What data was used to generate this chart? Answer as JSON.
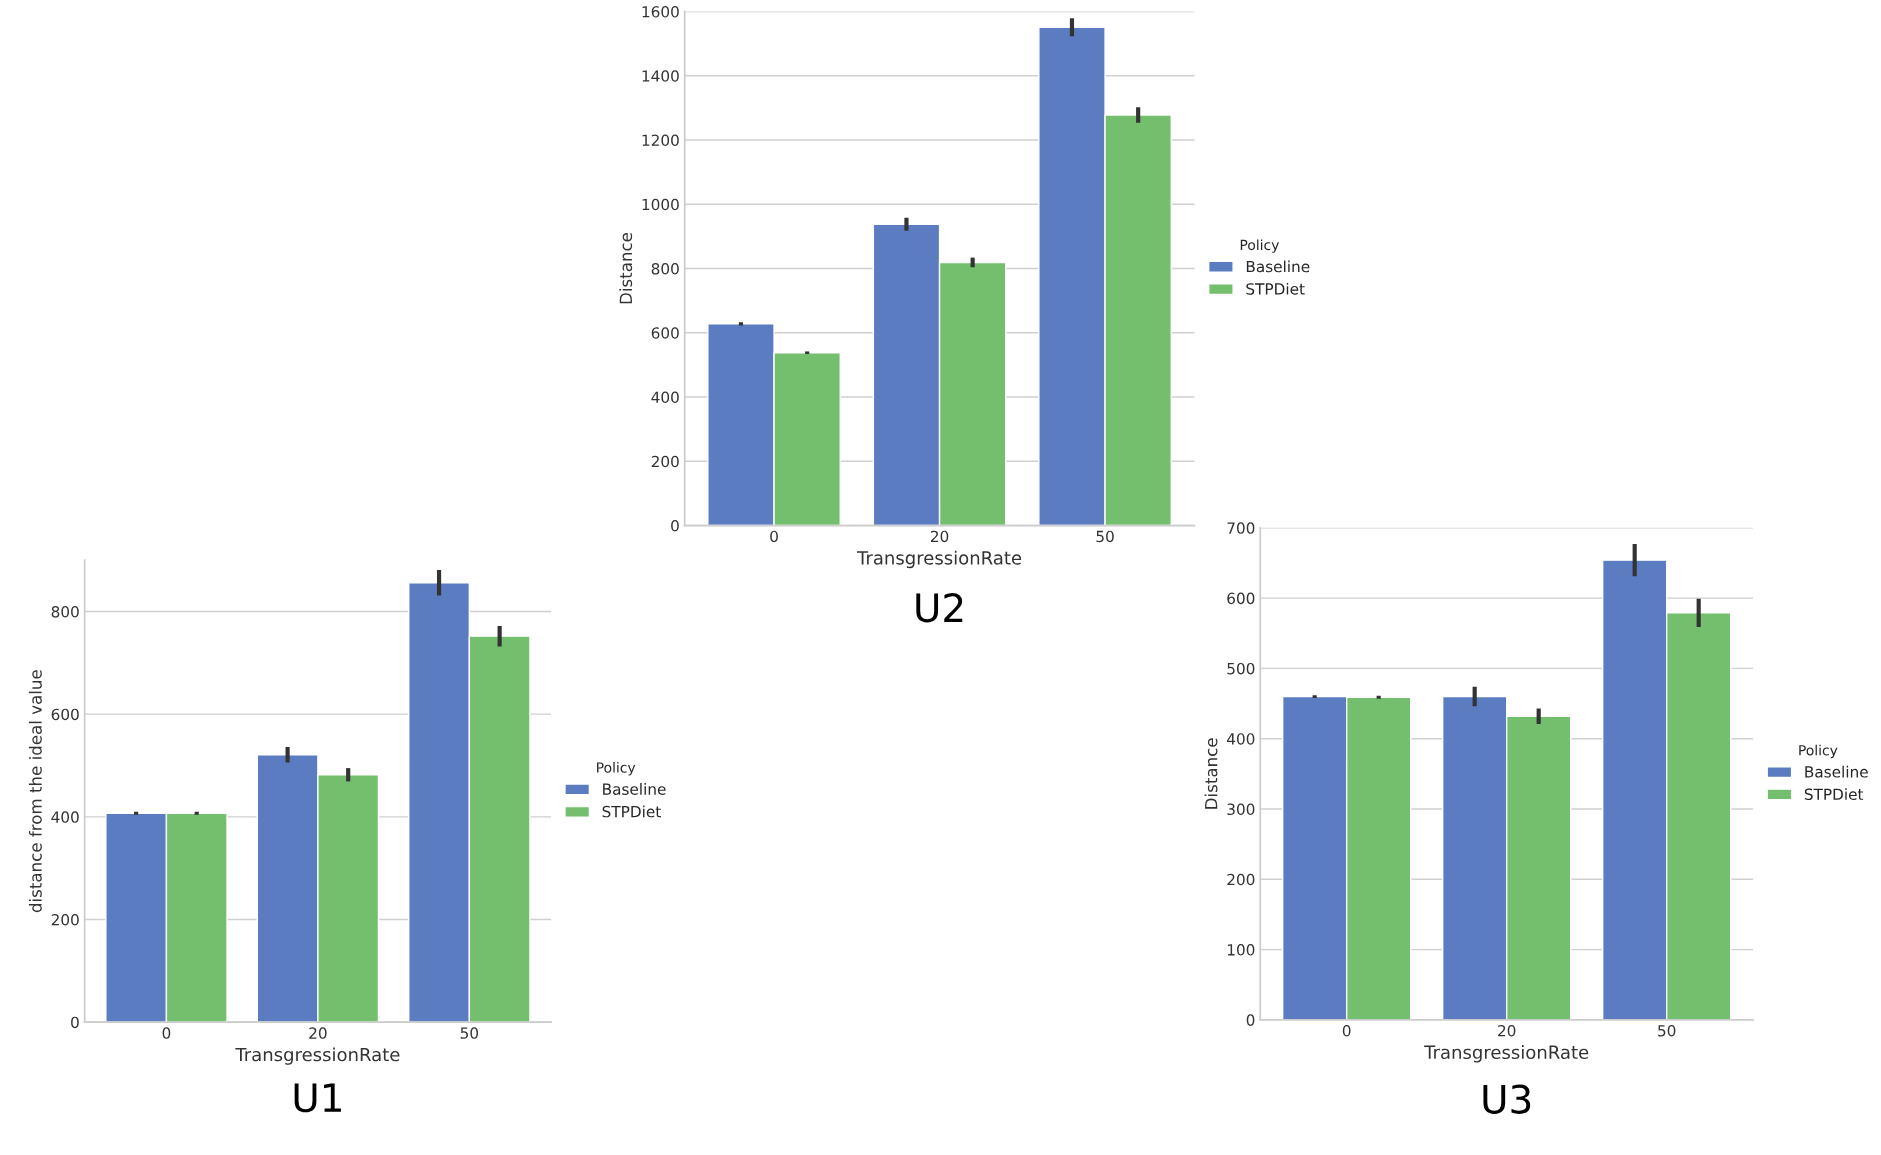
{
  "chart_data": [
    {
      "type": "bar",
      "title": "U1",
      "xlabel": "TransgressionRate",
      "ylabel": "distance from the ideal value",
      "legend_title": "Policy",
      "legend": "right",
      "grid": "y",
      "categories": [
        "0",
        "20",
        "50"
      ],
      "ylim": [
        0,
        900
      ],
      "yticks": [
        0,
        200,
        400,
        600,
        800
      ],
      "series": [
        {
          "name": "Baseline",
          "color": "#5b7cc1",
          "values": [
            407,
            521,
            856
          ],
          "errors": [
            3,
            15,
            25
          ]
        },
        {
          "name": "STPDiet",
          "color": "#74bf6e",
          "values": [
            407,
            482,
            752
          ],
          "errors": [
            3,
            13,
            20
          ]
        }
      ]
    },
    {
      "type": "bar",
      "title": "U2",
      "xlabel": "TransgressionRate",
      "ylabel": "Distance",
      "legend_title": "Policy",
      "legend": "right",
      "grid": "y",
      "categories": [
        "0",
        "20",
        "50"
      ],
      "ylim": [
        0,
        1600
      ],
      "yticks": [
        0,
        200,
        400,
        600,
        800,
        1000,
        1200,
        1400,
        1600
      ],
      "series": [
        {
          "name": "Baseline",
          "color": "#5b7cc1",
          "values": [
            628,
            938,
            1551
          ],
          "errors": [
            5,
            20,
            28
          ]
        },
        {
          "name": "STPDiet",
          "color": "#74bf6e",
          "values": [
            538,
            819,
            1278
          ],
          "errors": [
            4,
            15,
            24
          ]
        }
      ]
    },
    {
      "type": "bar",
      "title": "U3",
      "xlabel": "TransgressionRate",
      "ylabel": "Distance",
      "legend_title": "Policy",
      "legend": "right",
      "grid": "y",
      "categories": [
        "0",
        "20",
        "50"
      ],
      "ylim": [
        0,
        700
      ],
      "yticks": [
        0,
        100,
        200,
        300,
        400,
        500,
        600,
        700
      ],
      "series": [
        {
          "name": "Baseline",
          "color": "#5b7cc1",
          "values": [
            460,
            460,
            654
          ],
          "errors": [
            2,
            14,
            23
          ]
        },
        {
          "name": "STPDiet",
          "color": "#74bf6e",
          "values": [
            459,
            432,
            579
          ],
          "errors": [
            2,
            11,
            20
          ]
        }
      ]
    }
  ]
}
